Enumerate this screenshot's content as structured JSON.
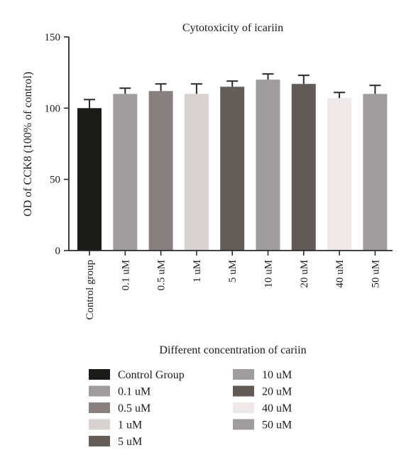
{
  "chart_data": {
    "type": "bar",
    "title": "Cytotoxicity of icariin",
    "xlabel": "Different concentration of cariin",
    "ylabel": "OD of CCK8 (100% of control)",
    "ylim": [
      0,
      150
    ],
    "yticks": [
      0,
      50,
      100,
      150
    ],
    "grid": false,
    "categories": [
      "Control group",
      "0.1 uM",
      "0.5 uM",
      "1 uM",
      "5 uM",
      "10 uM",
      "20 uM",
      "40 uM",
      "50 uM"
    ],
    "values": [
      100,
      110,
      112,
      110,
      115,
      120,
      117,
      107,
      110
    ],
    "errors": [
      6,
      4,
      5,
      7,
      4,
      4,
      6,
      4,
      6
    ],
    "colors": [
      "#1b1c19",
      "#a19d9e",
      "#87807e",
      "#d8d3d0",
      "#655d58",
      "#a19d9e",
      "#615a56",
      "#efe8e8",
      "#a19d9e"
    ],
    "legend": {
      "placement": "bottom",
      "entries": [
        {
          "label": "Control Group",
          "color": "#1b1c19"
        },
        {
          "label": "0.1 uM",
          "color": "#a19d9e"
        },
        {
          "label": "0.5 uM",
          "color": "#87807e"
        },
        {
          "label": "1 uM",
          "color": "#d8d3d0"
        },
        {
          "label": "5 uM",
          "color": "#655d58"
        },
        {
          "label": "10 uM",
          "color": "#a19d9e"
        },
        {
          "label": "20 uM",
          "color": "#615a56"
        },
        {
          "label": "40 uM",
          "color": "#efe8e8"
        },
        {
          "label": "50 uM",
          "color": "#a19d9e"
        }
      ]
    }
  }
}
